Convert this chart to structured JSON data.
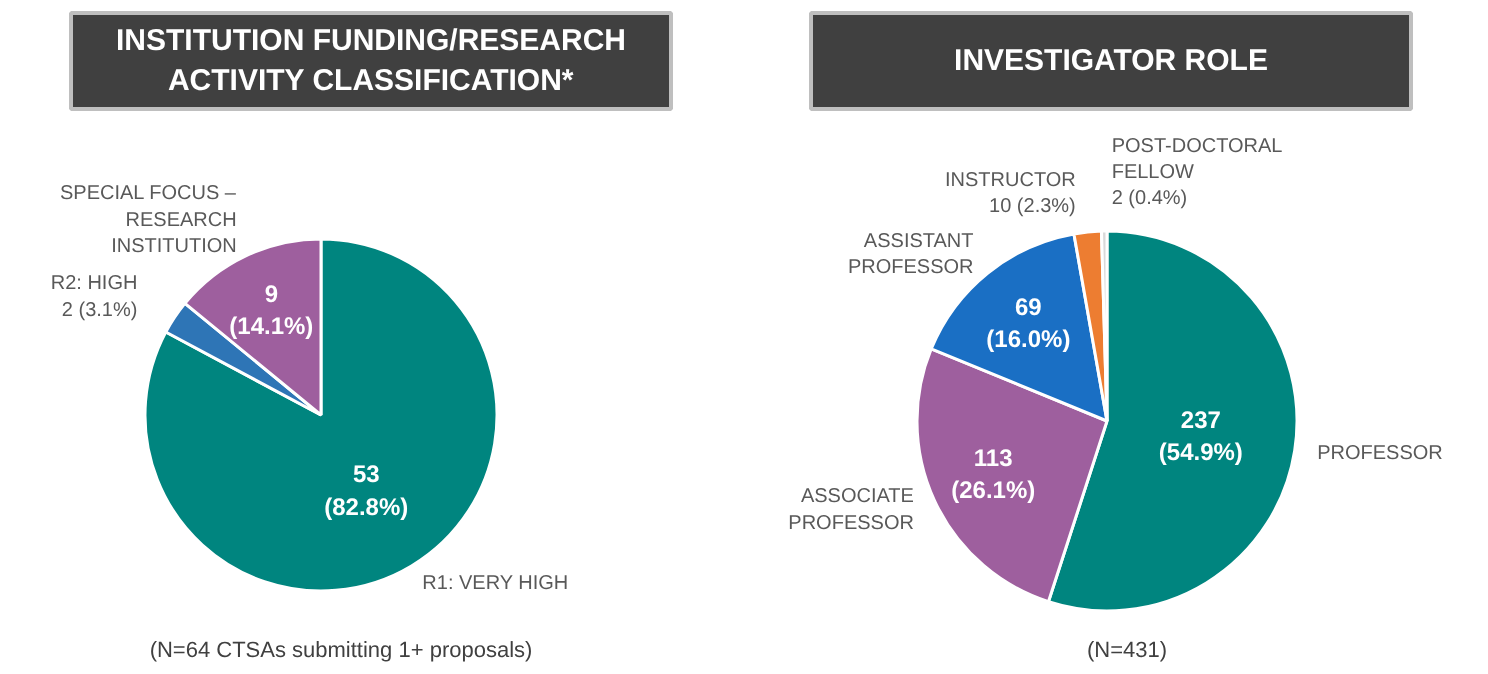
{
  "chart_data": [
    {
      "type": "pie",
      "title": "INSTITUTION FUNDING/RESEARCH ACTIVITY CLASSIFICATION*",
      "categories": [
        "R1: VERY HIGH",
        "R2: HIGH",
        "SPECIAL FOCUS – RESEARCH INSTITUTION"
      ],
      "values": [
        53,
        2,
        9
      ],
      "colors": [
        "#00857f",
        "#2e75b6",
        "#9e5f9e"
      ],
      "value_labels": [
        "53 (82.8%)",
        "2 (3.1%)",
        "9 (14.1%)"
      ],
      "annotations": [
        "(N=64 CTSAs submitting 1+ proposals)"
      ]
    },
    {
      "type": "pie",
      "title": "INVESTIGATOR ROLE",
      "categories": [
        "PROFESSOR",
        "ASSOCIATE PROFESSOR",
        "ASSISTANT PROFESSOR",
        "INSTRUCTOR",
        "POST-DOCTORAL FELLOW"
      ],
      "values": [
        237,
        113,
        69,
        10,
        2
      ],
      "colors": [
        "#00857f",
        "#9e5f9e",
        "#1a6fc4",
        "#ed7d31",
        "#d9d9d9"
      ],
      "value_labels": [
        "237 (54.9%)",
        "113 (26.1%)",
        "69 (16.0%)",
        "10 (2.3%)",
        "2 (0.4%)"
      ],
      "annotations": [
        "(N=431)"
      ]
    }
  ]
}
